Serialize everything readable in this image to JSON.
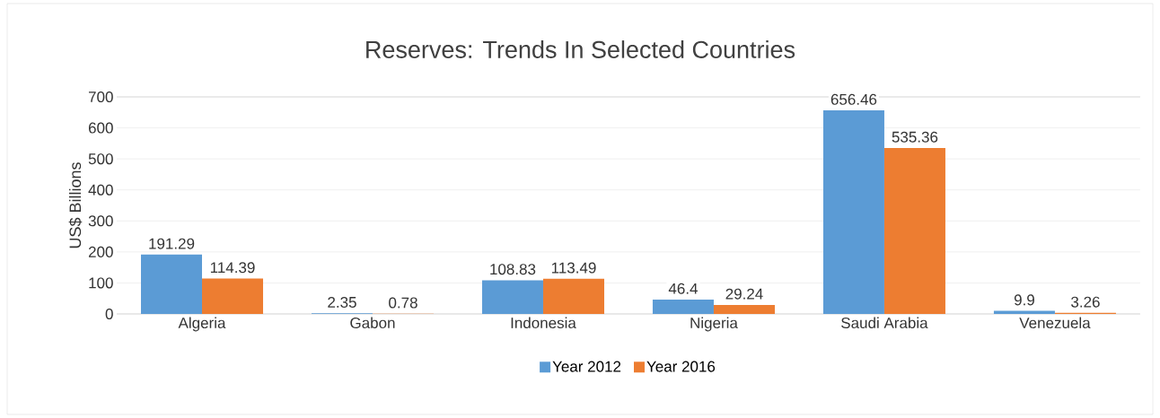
{
  "chart_data": {
    "type": "bar",
    "title": "Reserves: Trends In Selected Countries",
    "ylabel": "US$ Billions",
    "categories": [
      "Algeria",
      "Gabon",
      "Indonesia",
      "Nigeria",
      "Saudi Arabia",
      "Venezuela"
    ],
    "series": [
      {
        "name": "Year 2012",
        "color": "#5b9bd5",
        "values": [
          191.29,
          2.35,
          108.83,
          46.4,
          656.46,
          9.9
        ],
        "value_labels": [
          "191.29",
          "2.35",
          "108.83",
          "46.4",
          "656.46",
          "9.9"
        ]
      },
      {
        "name": "Year 2016",
        "color": "#ed7d31",
        "values": [
          114.39,
          0.78,
          113.49,
          29.24,
          535.36,
          3.26
        ],
        "value_labels": [
          "114.39",
          "0.78",
          "113.49",
          "29.24",
          "535.36",
          "3.26"
        ]
      }
    ],
    "ylim": [
      0,
      700
    ],
    "yticks": [
      0,
      100,
      200,
      300,
      400,
      500,
      600,
      700
    ],
    "grid": "y",
    "legend": "bottom"
  }
}
